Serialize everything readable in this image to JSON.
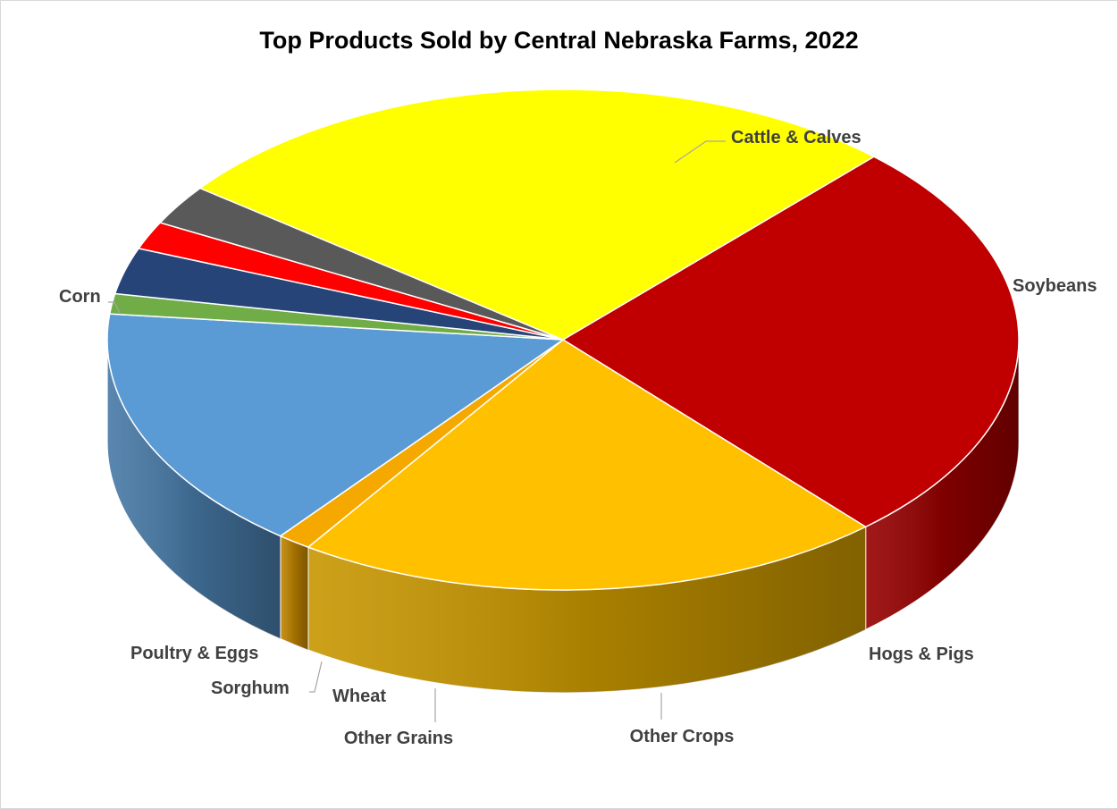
{
  "chart_data": {
    "type": "pie",
    "title": "Top Products Sold by Central Nebraska Farms, 2022",
    "style": "3d",
    "legend": "none (category labels beside slices)",
    "unit": "share of sales (%)",
    "slices": [
      {
        "name": "Cattle & Calves",
        "value": 26.5,
        "color": "#C00000"
      },
      {
        "name": "Soybeans",
        "value": 21.0,
        "color": "#FFC000"
      },
      {
        "name": "Hogs & Pigs",
        "value": 1.2,
        "color": "#F5A800"
      },
      {
        "name": "Other Crops",
        "value": 16.0,
        "color": "#5B9BD5"
      },
      {
        "name": "Other Grains",
        "value": 1.3,
        "color": "#70AD47"
      },
      {
        "name": "Wheat",
        "value": 3.0,
        "color": "#264478"
      },
      {
        "name": "Sorghum",
        "value": 1.8,
        "color": "#FF0000"
      },
      {
        "name": "Poultry & Eggs",
        "value": 2.6,
        "color": "#595959"
      },
      {
        "name": "Corn",
        "value": 26.6,
        "color": "#FFFF00"
      }
    ]
  }
}
